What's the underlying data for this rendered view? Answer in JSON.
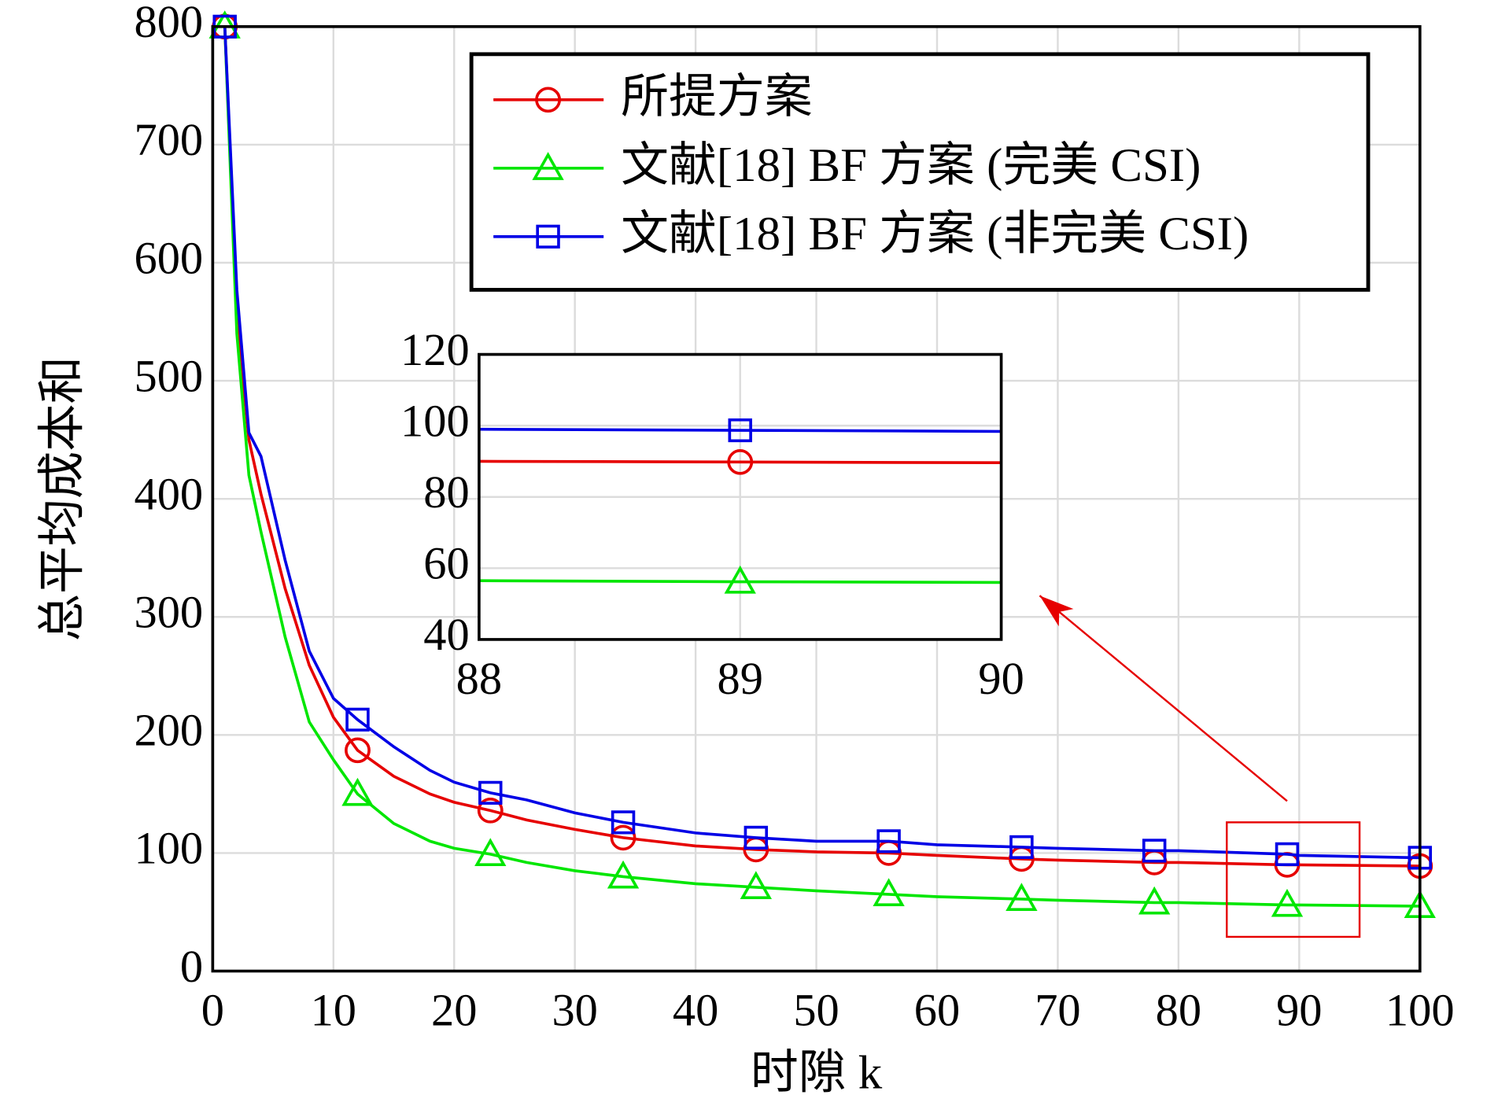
{
  "chart_data": [
    {
      "type": "line",
      "xlabel": "时隙 k",
      "ylabel": "总平均成本和",
      "x": [
        1,
        2,
        3,
        4,
        6,
        8,
        10,
        12,
        15,
        18,
        20,
        23,
        26,
        30,
        34,
        40,
        45,
        50,
        56,
        60,
        67,
        70,
        78,
        80,
        89,
        90,
        100
      ],
      "markevery": [
        0,
        7,
        11,
        14,
        16,
        18,
        20,
        22,
        24,
        26
      ],
      "series": [
        {
          "name": "所提方案",
          "color": "#e60000",
          "marker": "o",
          "values": [
            800,
            560,
            450,
            404,
            324,
            259,
            215,
            187,
            165,
            150,
            143,
            136,
            128,
            120,
            113,
            106,
            103,
            101,
            100,
            98,
            95,
            94,
            92,
            92,
            90,
            90,
            89
          ]
        },
        {
          "name": "文献[18] BF 方案 (完美 CSI)",
          "color": "#00e600",
          "marker": "^",
          "values": [
            800,
            540,
            420,
            372,
            283,
            211,
            179,
            150,
            125,
            110,
            104,
            99,
            92,
            85,
            80,
            74,
            71,
            68,
            65,
            63,
            61,
            60,
            58,
            58,
            56,
            56,
            55
          ]
        },
        {
          "name": "文献[18] BF 方案 (非完美 CSI)",
          "color": "#0000e6",
          "marker": "s",
          "values": [
            800,
            577,
            456,
            436,
            348,
            271,
            231,
            213,
            190,
            170,
            160,
            151,
            145,
            134,
            126,
            117,
            113,
            110,
            110,
            107,
            105,
            104,
            102,
            102,
            99,
            98,
            96
          ]
        }
      ],
      "xlim": [
        0,
        100
      ],
      "xticks": [
        0,
        10,
        20,
        30,
        40,
        50,
        60,
        70,
        80,
        90,
        100
      ],
      "ylim": [
        0,
        800
      ],
      "yticks": [
        0,
        100,
        200,
        300,
        400,
        500,
        600,
        700,
        800
      ],
      "grid": true,
      "legend": "upper right",
      "zoom_box": {
        "xlim": [
          84,
          95
        ],
        "ylim": [
          29,
          126
        ],
        "color": "#e60000"
      },
      "arrow": {
        "from": [
          89,
          144
        ],
        "to": [
          68.5,
          318
        ],
        "color": "#e60000"
      }
    },
    {
      "type": "line",
      "x": [
        88,
        89,
        90
      ],
      "markevery": [
        1
      ],
      "series": [
        {
          "color": "#e60000",
          "marker": "o",
          "values": [
            90,
            89.8,
            89.6
          ]
        },
        {
          "color": "#00e600",
          "marker": "^",
          "values": [
            56.5,
            56.2,
            56
          ]
        },
        {
          "color": "#0000e6",
          "marker": "s",
          "values": [
            99,
            98.7,
            98.4
          ]
        }
      ],
      "xlim": [
        88,
        90
      ],
      "xticks": [
        88,
        89,
        90
      ],
      "ylim": [
        40,
        120
      ],
      "yticks": [
        40,
        60,
        80,
        100,
        120
      ],
      "grid": true
    }
  ]
}
